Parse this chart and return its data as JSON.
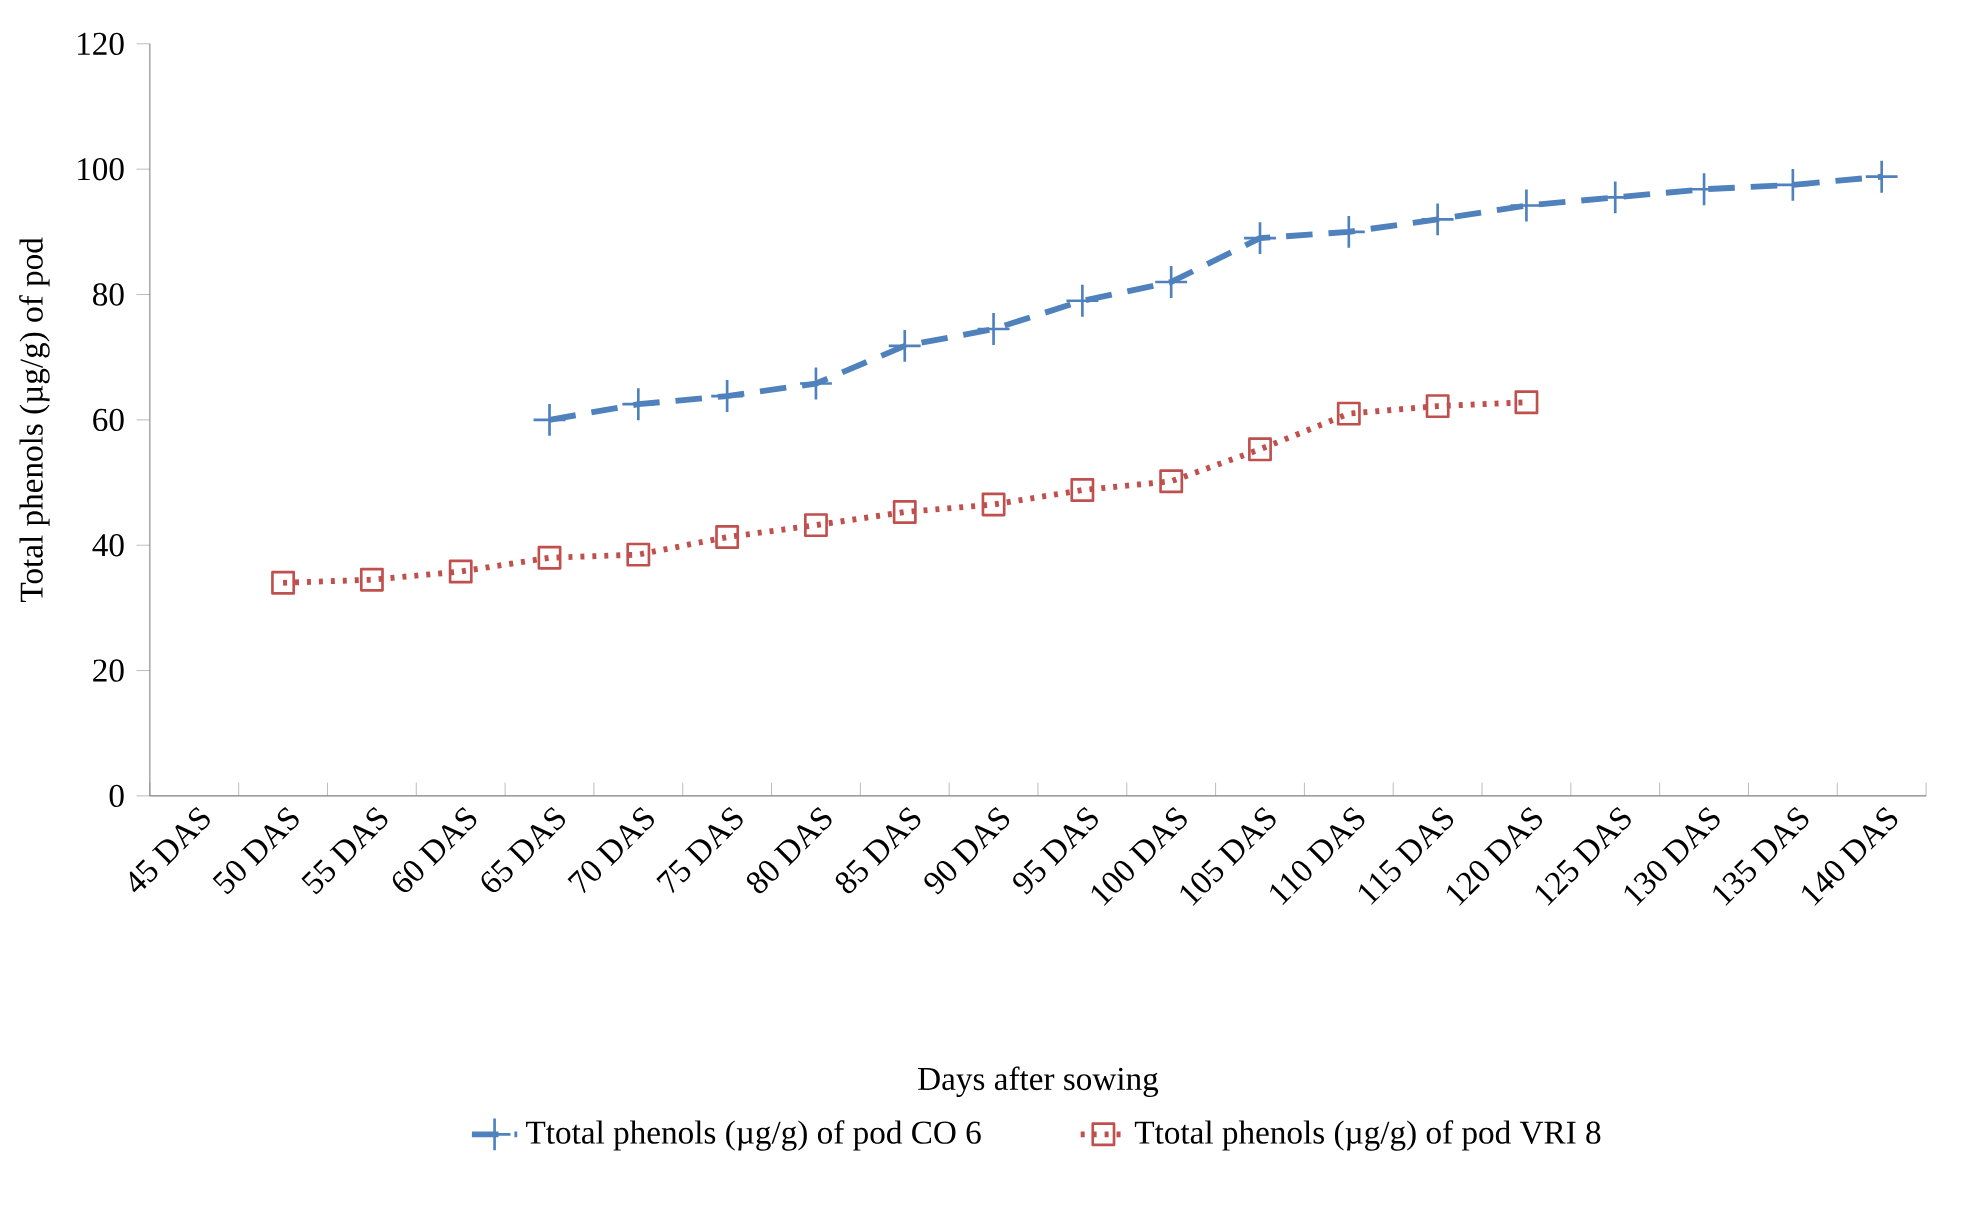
{
  "chart_data": {
    "type": "line",
    "xlabel": "Days after sowing",
    "ylabel": "Total phenols (µg/g) of pod",
    "categories": [
      "45 DAS",
      "50 DAS",
      "55 DAS",
      "60 DAS",
      "65 DAS",
      "70 DAS",
      "75 DAS",
      "80 DAS",
      "85 DAS",
      "90 DAS",
      "95 DAS",
      "100 DAS",
      "105 DAS",
      "110 DAS",
      "115 DAS",
      "120 DAS",
      "125 DAS",
      "130 DAS",
      "135 DAS",
      "140 DAS"
    ],
    "series": [
      {
        "name": "Ttotal phenols (µg/g) of pod CO 6",
        "color": "#4f81bd",
        "marker": "cross",
        "line_style": "dashed",
        "values": [
          null,
          null,
          null,
          null,
          60,
          62.5,
          63.8,
          65.8,
          71.8,
          74.5,
          79,
          82,
          89,
          90,
          92,
          94.2,
          95.5,
          96.8,
          97.5,
          98.8
        ]
      },
      {
        "name": "Ttotal phenols (µg/g) of pod VRI 8",
        "color": "#c0504d",
        "marker": "square",
        "line_style": "dotted",
        "values": [
          null,
          34,
          34.5,
          35.8,
          38,
          38.5,
          41.3,
          43.2,
          45.3,
          46.5,
          48.8,
          50.2,
          55.3,
          61,
          62.2,
          62.8,
          null,
          null,
          null,
          null
        ]
      }
    ],
    "ylim": [
      0,
      120
    ],
    "yticks": [
      0,
      20,
      40,
      60,
      80,
      100,
      120
    ],
    "grid": false,
    "legend": "bottom"
  }
}
